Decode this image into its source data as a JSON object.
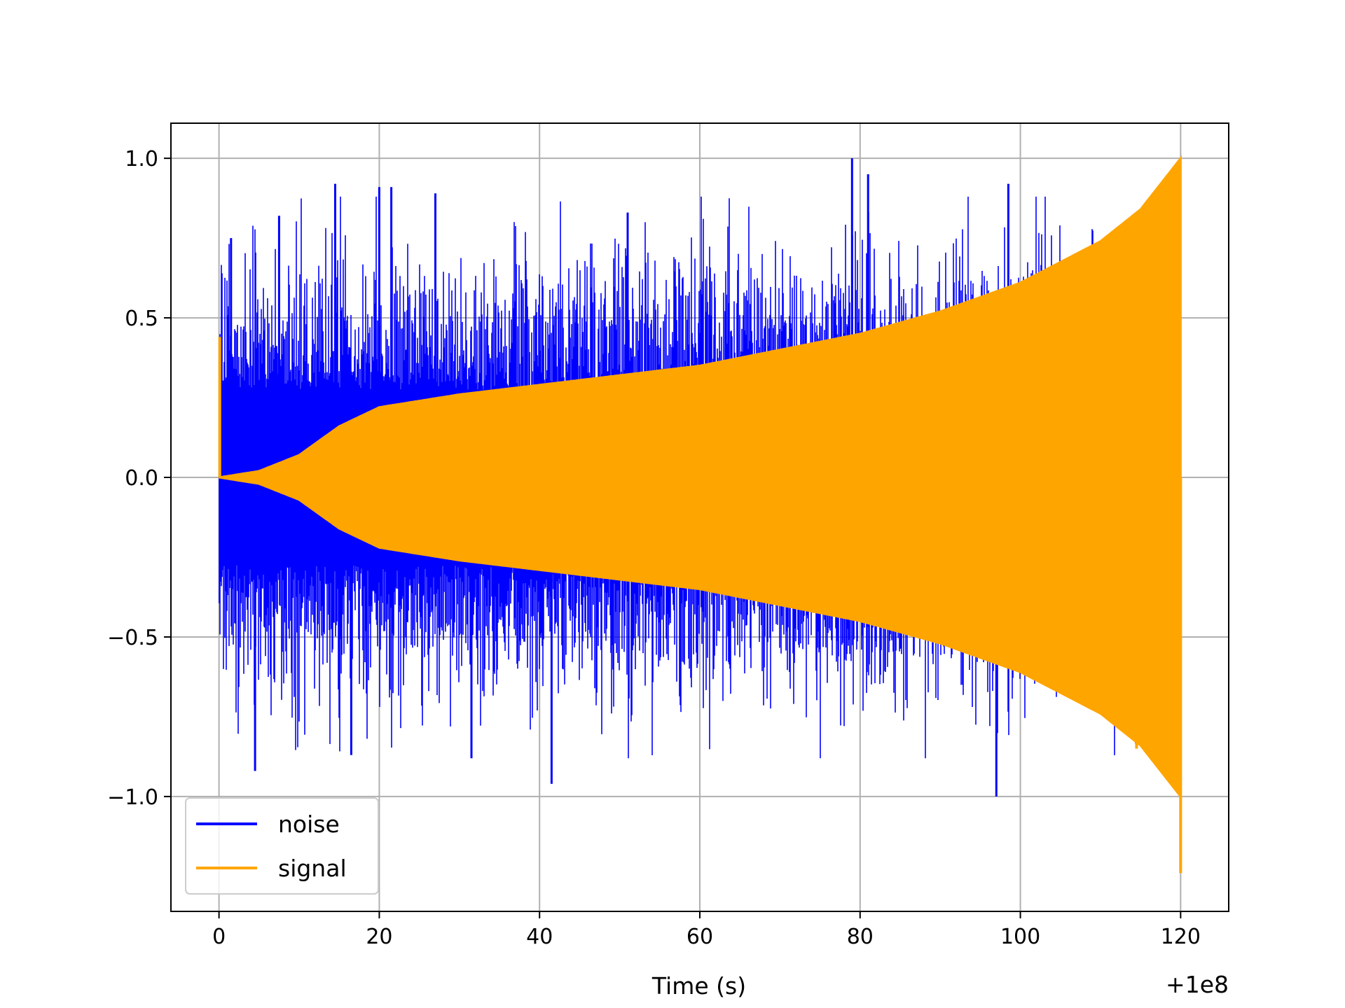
{
  "chart_data": {
    "type": "line",
    "title": "",
    "xlabel": "Time (s)",
    "ylabel": "",
    "x_offset_label": "+1e8",
    "xlim": [
      -6,
      126
    ],
    "ylim": [
      -1.36,
      1.11
    ],
    "x_ticks": [
      0,
      20,
      40,
      60,
      80,
      100,
      120
    ],
    "x_tick_labels": [
      "0",
      "20",
      "40",
      "60",
      "80",
      "100",
      "120"
    ],
    "y_ticks": [
      -1.0,
      -0.5,
      0.0,
      0.5,
      1.0
    ],
    "y_tick_labels": [
      "−1.0",
      "−0.5",
      "0.0",
      "0.5",
      "1.0"
    ],
    "grid": true,
    "legend_position": "lower-left",
    "x_start": 0,
    "x_end": 120,
    "series": [
      {
        "name": "noise",
        "color": "#0000ff",
        "description": "random noise",
        "typical_amplitude": 0.5,
        "peak_values": [
          {
            "x": 1.5,
            "y": 0.75
          },
          {
            "x": 4.5,
            "y": -0.92
          },
          {
            "x": 7.5,
            "y": 0.82
          },
          {
            "x": 14.5,
            "y": 0.92
          },
          {
            "x": 16.5,
            "y": -0.87
          },
          {
            "x": 20.0,
            "y": 0.91
          },
          {
            "x": 21.5,
            "y": 0.91
          },
          {
            "x": 27.0,
            "y": 0.89
          },
          {
            "x": 31.5,
            "y": -0.88
          },
          {
            "x": 41.5,
            "y": -0.96
          },
          {
            "x": 51.0,
            "y": 0.83
          },
          {
            "x": 79.0,
            "y": 1.0
          },
          {
            "x": 81.0,
            "y": 0.95
          },
          {
            "x": 97.0,
            "y": -1.0
          },
          {
            "x": 98.5,
            "y": 0.92
          }
        ]
      },
      {
        "name": "signal",
        "color": "#ffa500",
        "description": "chirp",
        "envelope": [
          {
            "x": 0,
            "y": 0.0
          },
          {
            "x": 5,
            "y": 0.02
          },
          {
            "x": 10,
            "y": 0.07
          },
          {
            "x": 15,
            "y": 0.16
          },
          {
            "x": 20,
            "y": 0.22
          },
          {
            "x": 30,
            "y": 0.26
          },
          {
            "x": 40,
            "y": 0.29
          },
          {
            "x": 50,
            "y": 0.32
          },
          {
            "x": 60,
            "y": 0.35
          },
          {
            "x": 70,
            "y": 0.4
          },
          {
            "x": 80,
            "y": 0.45
          },
          {
            "x": 90,
            "y": 0.52
          },
          {
            "x": 100,
            "y": 0.61
          },
          {
            "x": 110,
            "y": 0.74
          },
          {
            "x": 115,
            "y": 0.84
          },
          {
            "x": 120,
            "y": 1.0
          }
        ],
        "spikes": [
          {
            "x": 0.1,
            "y": 0.44
          },
          {
            "x": 114.5,
            "y": -0.85
          },
          {
            "x": 120.0,
            "y": -1.24
          }
        ]
      }
    ]
  }
}
